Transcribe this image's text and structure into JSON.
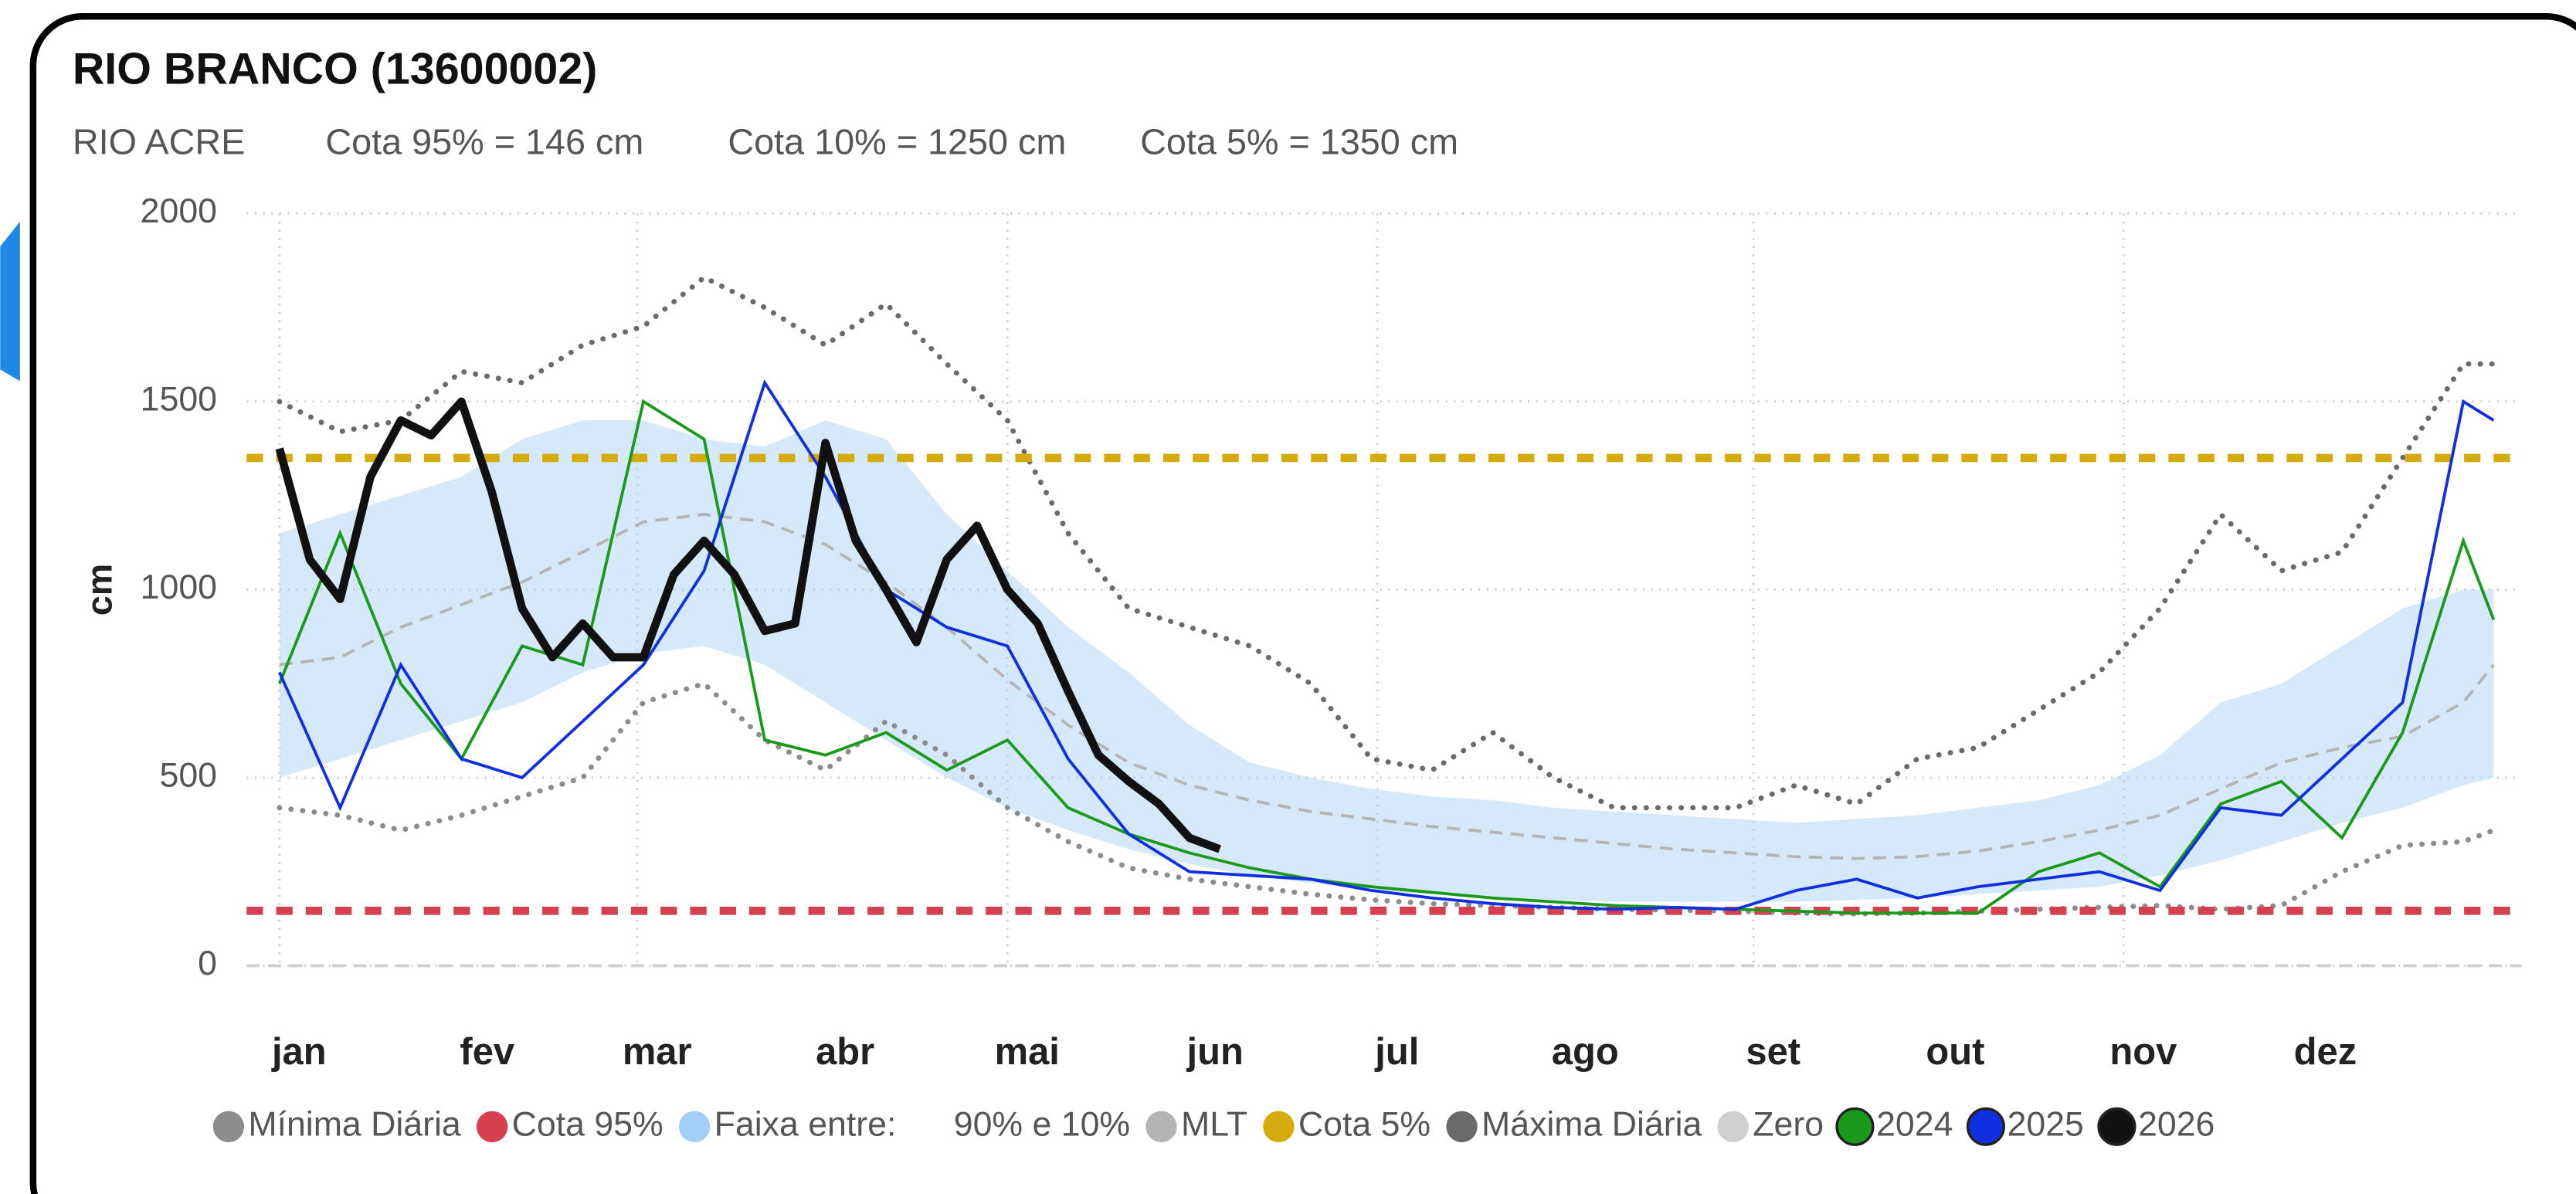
{
  "header": {
    "title": "RIO BRANCO (13600002)",
    "subtitle": [
      "RIO ACRE",
      "Cota 95% = 146 cm",
      "Cota 10% = 1250 cm",
      "Cota 5% = 1350 cm"
    ]
  },
  "chart_data": {
    "type": "line",
    "ylabel": "cm",
    "xlim": [
      0,
      365
    ],
    "ylim": [
      0,
      2000
    ],
    "yticks": [
      0,
      500,
      1000,
      1500,
      2000
    ],
    "grid": true,
    "xticks": [
      {
        "value": 0,
        "label": "jan"
      },
      {
        "value": 31,
        "label": "fev"
      },
      {
        "value": 59,
        "label": "mar"
      },
      {
        "value": 90,
        "label": "abr"
      },
      {
        "value": 120,
        "label": "mai"
      },
      {
        "value": 151,
        "label": "jun"
      },
      {
        "value": 181,
        "label": "jul"
      },
      {
        "value": 212,
        "label": "ago"
      },
      {
        "value": 243,
        "label": "set"
      },
      {
        "value": 273,
        "label": "out"
      },
      {
        "value": 304,
        "label": "nov"
      },
      {
        "value": 334,
        "label": "dez"
      }
    ],
    "series": [
      {
        "name": "Mínima Diária",
        "kind": "line",
        "style": "dotted",
        "color": "#8c8c8c",
        "x": [
          0,
          10,
          20,
          30,
          40,
          50,
          60,
          70,
          80,
          90,
          100,
          110,
          120,
          130,
          140,
          150,
          160,
          170,
          180,
          190,
          200,
          210,
          220,
          230,
          240,
          250,
          260,
          270,
          280,
          290,
          300,
          310,
          320,
          330,
          340,
          350,
          360,
          365
        ],
        "values": [
          420,
          400,
          360,
          400,
          450,
          500,
          700,
          750,
          600,
          520,
          650,
          560,
          420,
          330,
          260,
          230,
          210,
          190,
          175,
          165,
          160,
          155,
          150,
          148,
          145,
          140,
          138,
          140,
          145,
          150,
          155,
          160,
          150,
          160,
          250,
          320,
          330,
          360
        ]
      },
      {
        "name": "Cota 95%",
        "kind": "hline",
        "style": "dashed",
        "color": "#d6404e",
        "value": 146
      },
      {
        "name": "Faixa entre:      90% e 10%",
        "kind": "band",
        "color": "#a3cff7",
        "x": [
          0,
          10,
          20,
          30,
          40,
          50,
          60,
          70,
          80,
          90,
          100,
          110,
          120,
          130,
          140,
          150,
          160,
          170,
          180,
          190,
          200,
          210,
          220,
          230,
          240,
          250,
          260,
          270,
          280,
          290,
          300,
          310,
          320,
          330,
          340,
          350,
          360,
          365
        ],
        "upper": [
          1150,
          1200,
          1250,
          1300,
          1400,
          1450,
          1450,
          1400,
          1380,
          1450,
          1400,
          1200,
          1050,
          900,
          780,
          640,
          540,
          500,
          470,
          450,
          440,
          420,
          410,
          400,
          390,
          380,
          390,
          400,
          420,
          440,
          480,
          560,
          700,
          750,
          850,
          950,
          1000,
          1000
        ],
        "lower": [
          500,
          550,
          600,
          650,
          700,
          780,
          830,
          850,
          800,
          700,
          600,
          500,
          420,
          360,
          310,
          270,
          240,
          220,
          200,
          190,
          180,
          175,
          170,
          170,
          170,
          170,
          175,
          180,
          190,
          200,
          210,
          240,
          280,
          330,
          380,
          420,
          480,
          500
        ]
      },
      {
        "name": "MLT",
        "kind": "line",
        "style": "dashed",
        "color": "#b4b4b4",
        "x": [
          0,
          10,
          20,
          30,
          40,
          50,
          60,
          70,
          80,
          90,
          100,
          110,
          120,
          130,
          140,
          150,
          160,
          170,
          180,
          190,
          200,
          210,
          220,
          230,
          240,
          250,
          260,
          270,
          280,
          290,
          300,
          310,
          320,
          330,
          340,
          350,
          360,
          365
        ],
        "values": [
          800,
          820,
          900,
          960,
          1020,
          1100,
          1180,
          1200,
          1180,
          1120,
          1020,
          900,
          760,
          640,
          540,
          480,
          440,
          410,
          390,
          370,
          355,
          340,
          325,
          310,
          300,
          290,
          285,
          290,
          305,
          330,
          360,
          400,
          470,
          540,
          580,
          610,
          700,
          800
        ]
      },
      {
        "name": "Cota 5%",
        "kind": "hline",
        "style": "dashed",
        "color": "#d4ac0d",
        "value": 1350
      },
      {
        "name": "Máxima Diária",
        "kind": "line",
        "style": "dotted",
        "color": "#6a6a6a",
        "x": [
          0,
          10,
          20,
          30,
          40,
          50,
          60,
          70,
          80,
          90,
          100,
          110,
          120,
          130,
          140,
          150,
          160,
          170,
          180,
          190,
          200,
          210,
          220,
          230,
          240,
          250,
          260,
          270,
          280,
          290,
          300,
          310,
          320,
          330,
          340,
          350,
          360,
          365
        ],
        "values": [
          1500,
          1420,
          1450,
          1580,
          1550,
          1650,
          1700,
          1830,
          1750,
          1650,
          1760,
          1600,
          1450,
          1150,
          950,
          900,
          850,
          750,
          550,
          520,
          620,
          500,
          420,
          420,
          420,
          480,
          430,
          550,
          580,
          680,
          780,
          950,
          1200,
          1050,
          1100,
          1350,
          1600,
          1600
        ]
      },
      {
        "name": "Zero",
        "kind": "hline",
        "style": "dashed",
        "color": "#cfcfcf",
        "value": 0
      },
      {
        "name": "2024",
        "kind": "line",
        "style": "solid",
        "color": "#1a9a1a",
        "x": [
          0,
          10,
          20,
          30,
          40,
          50,
          60,
          70,
          80,
          90,
          100,
          110,
          120,
          130,
          140,
          150,
          160,
          170,
          180,
          190,
          200,
          210,
          220,
          230,
          240,
          250,
          260,
          270,
          280,
          290,
          300,
          310,
          320,
          330,
          340,
          350,
          360,
          365
        ],
        "values": [
          750,
          1150,
          750,
          550,
          850,
          800,
          1500,
          1400,
          600,
          560,
          620,
          520,
          600,
          420,
          350,
          300,
          260,
          230,
          210,
          195,
          180,
          170,
          160,
          155,
          150,
          145,
          140,
          140,
          140,
          250,
          300,
          210,
          430,
          490,
          340,
          620,
          1130,
          920
        ]
      },
      {
        "name": "2025",
        "kind": "line",
        "style": "solid",
        "color": "#1030e0",
        "x": [
          0,
          10,
          20,
          30,
          40,
          50,
          60,
          70,
          80,
          90,
          100,
          110,
          120,
          130,
          140,
          150,
          160,
          170,
          180,
          190,
          200,
          210,
          220,
          230,
          240,
          250,
          260,
          270,
          280,
          290,
          300,
          310,
          320,
          330,
          340,
          350,
          360,
          365
        ],
        "values": [
          780,
          420,
          800,
          550,
          500,
          650,
          800,
          1050,
          1550,
          1300,
          1000,
          900,
          850,
          550,
          350,
          250,
          240,
          230,
          200,
          180,
          165,
          155,
          150,
          155,
          150,
          200,
          230,
          180,
          210,
          230,
          250,
          200,
          420,
          400,
          550,
          700,
          1500,
          1450
        ]
      },
      {
        "name": "2026",
        "kind": "line",
        "style": "bold",
        "color": "#111111",
        "x": [
          0,
          5,
          10,
          15,
          20,
          25,
          30,
          35,
          40,
          45,
          50,
          55,
          60,
          65,
          70,
          75,
          80,
          85,
          90,
          95,
          100,
          105,
          110,
          115,
          120,
          125,
          130,
          135,
          140,
          145,
          150,
          155
        ],
        "values": [
          1375,
          1080,
          975,
          1300,
          1450,
          1410,
          1500,
          1260,
          950,
          820,
          910,
          820,
          820,
          1040,
          1130,
          1040,
          890,
          910,
          1390,
          1130,
          1000,
          860,
          1080,
          1170,
          1000,
          910,
          730,
          560,
          490,
          430,
          340,
          310
        ]
      }
    ]
  }
}
